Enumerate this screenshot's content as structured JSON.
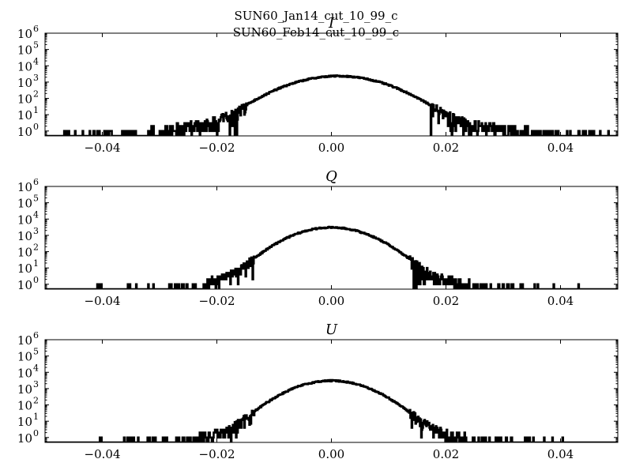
{
  "suptitle": [
    "SUN60_Jan14_cut_10_99_c",
    "SUN60_Feb14_cut_10_99_c"
  ],
  "chart_data": [
    {
      "type": "histogram",
      "title": "I",
      "xlim": [
        -0.05,
        0.05
      ],
      "ylim_exp": [
        -0.3,
        6
      ],
      "yscale": "log",
      "xticks": [
        -0.04,
        -0.02,
        0.0,
        0.02,
        0.04
      ],
      "xtick_labels": [
        "−0.04",
        "−0.02",
        "0.00",
        "0.02",
        "0.04"
      ],
      "ytick_exps": [
        0,
        1,
        2,
        3,
        4,
        5,
        6
      ],
      "ytick_base": "10",
      "distribution": {
        "center": 0.0012,
        "peak": 2300,
        "sigma": 0.0055,
        "tail_scale": 0.0075
      },
      "x_extent": [
        -0.048,
        0.049
      ]
    },
    {
      "type": "histogram",
      "title": "Q",
      "xlim": [
        -0.05,
        0.05
      ],
      "ylim_exp": [
        -0.3,
        6
      ],
      "yscale": "log",
      "xticks": [
        -0.04,
        -0.02,
        0.0,
        0.02,
        0.04
      ],
      "xtick_labels": [
        "−0.04",
        "−0.02",
        "0.00",
        "0.02",
        "0.04"
      ],
      "ytick_exps": [
        0,
        1,
        2,
        3,
        4,
        5,
        6
      ],
      "ytick_base": "10",
      "distribution": {
        "center": 0.0,
        "peak": 3000,
        "sigma": 0.0045,
        "tail_scale": 0.0055
      },
      "x_extent": [
        -0.041,
        0.044
      ]
    },
    {
      "type": "histogram",
      "title": "U",
      "xlim": [
        -0.05,
        0.05
      ],
      "ylim_exp": [
        -0.3,
        6
      ],
      "yscale": "log",
      "xticks": [
        -0.04,
        -0.02,
        0.0,
        0.02,
        0.04
      ],
      "xtick_labels": [
        "−0.04",
        "−0.02",
        "0.00",
        "0.02",
        "0.04"
      ],
      "ytick_exps": [
        0,
        1,
        2,
        3,
        4,
        5,
        6
      ],
      "ytick_base": "10",
      "distribution": {
        "center": 0.0,
        "peak": 3000,
        "sigma": 0.0045,
        "tail_scale": 0.0055
      },
      "x_extent": [
        -0.042,
        0.041
      ]
    }
  ]
}
